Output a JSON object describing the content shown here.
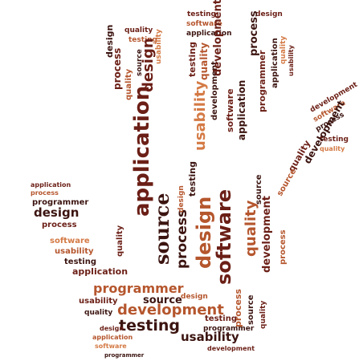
{
  "colors": {
    "dark": "#3b1410",
    "maroon": "#6b1f16",
    "rust": "#b5562d",
    "orange": "#d47a45",
    "tan": "#c99a7a"
  },
  "words": {
    "testing": "testing",
    "development": "development",
    "programmer": "programmer",
    "design": "design",
    "usability": "usability",
    "source": "source",
    "software": "software",
    "application": "application",
    "process": "process",
    "quality": "quality"
  }
}
